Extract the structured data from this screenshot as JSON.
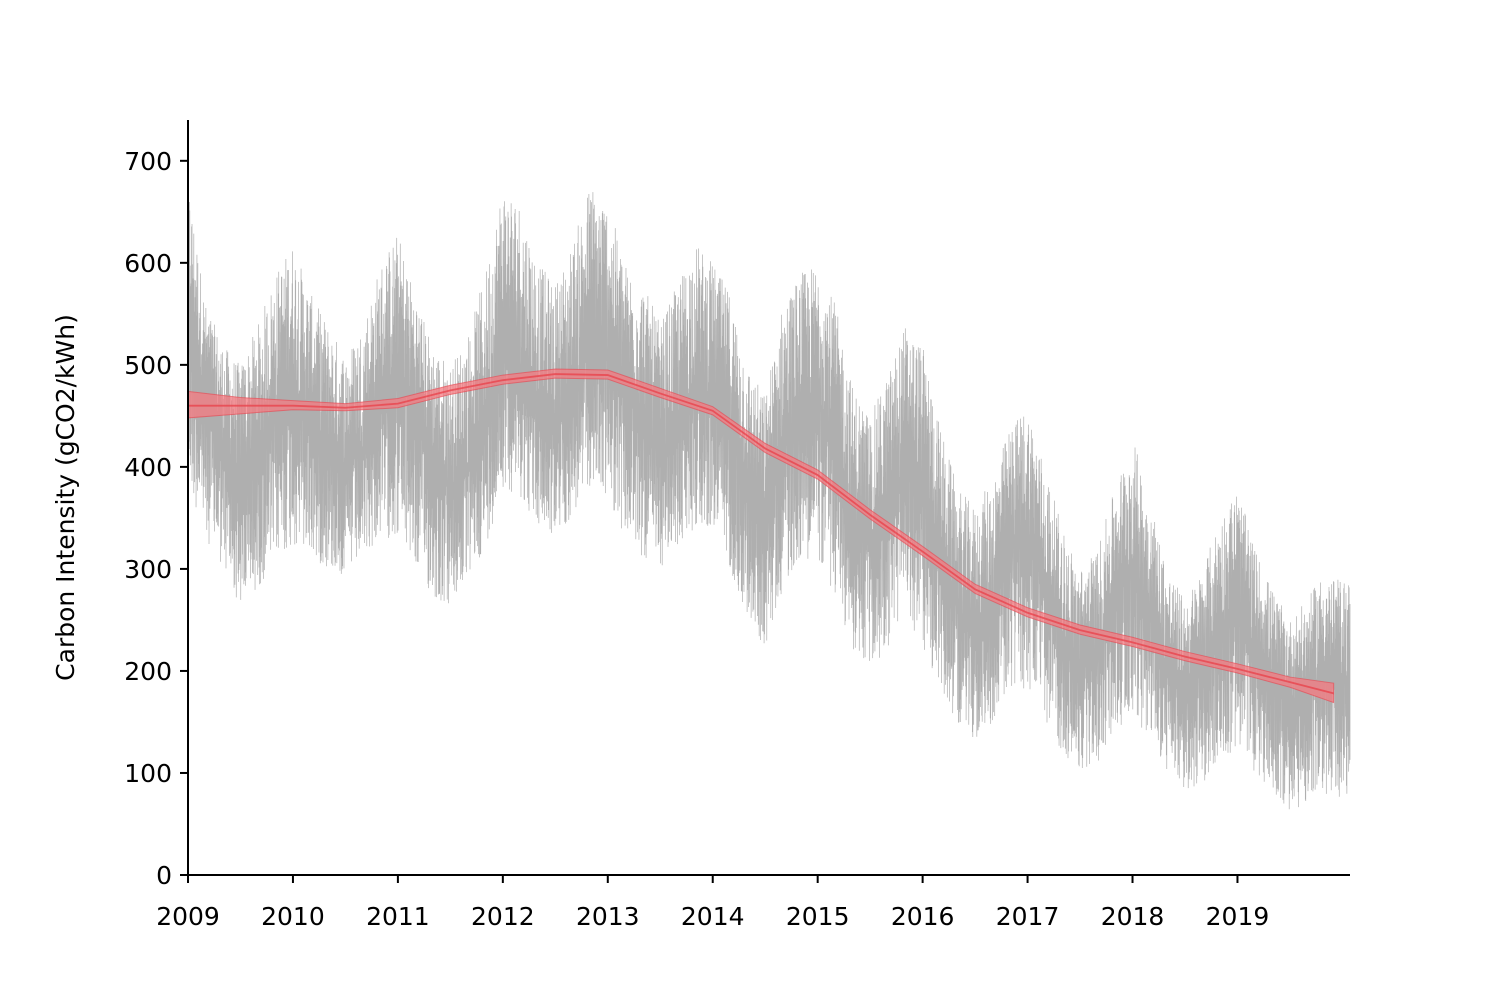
{
  "chart_data": {
    "type": "line",
    "title": "",
    "xlabel": "",
    "ylabel": "Carbon Intensity (gCO2/kWh)",
    "xlim": [
      "2009-01-01",
      "2019-12-31"
    ],
    "ylim": [
      0,
      740
    ],
    "x_ticks": [
      "2009",
      "2010",
      "2011",
      "2012",
      "2013",
      "2014",
      "2015",
      "2016",
      "2017",
      "2018",
      "2019"
    ],
    "y_ticks": [
      0,
      100,
      200,
      300,
      400,
      500,
      600,
      700
    ],
    "grid": false,
    "legend": "none",
    "colors": {
      "raw": "#a6a6a6",
      "trend": "#e8434c",
      "band": "#f47a80"
    },
    "series": [
      {
        "kind": "raw",
        "sampling": "monthly approximation of the half-hourly signal",
        "x": [
          "2009-01",
          "2009-03",
          "2009-05",
          "2009-07",
          "2009-09",
          "2009-11",
          "2010-01",
          "2010-03",
          "2010-05",
          "2010-07",
          "2010-09",
          "2010-11",
          "2011-01",
          "2011-03",
          "2011-05",
          "2011-07",
          "2011-09",
          "2011-11",
          "2012-01",
          "2012-03",
          "2012-05",
          "2012-07",
          "2012-09",
          "2012-11",
          "2013-01",
          "2013-03",
          "2013-05",
          "2013-07",
          "2013-09",
          "2013-11",
          "2014-01",
          "2014-03",
          "2014-05",
          "2014-07",
          "2014-09",
          "2014-11",
          "2015-01",
          "2015-03",
          "2015-05",
          "2015-07",
          "2015-09",
          "2015-11",
          "2016-01",
          "2016-03",
          "2016-05",
          "2016-07",
          "2016-09",
          "2016-11",
          "2017-01",
          "2017-03",
          "2017-05",
          "2017-07",
          "2017-09",
          "2017-11",
          "2018-01",
          "2018-03",
          "2018-05",
          "2018-07",
          "2018-09",
          "2018-11",
          "2019-01",
          "2019-03",
          "2019-05",
          "2019-07",
          "2019-09",
          "2019-11",
          "2019-12"
        ],
        "mean": [
          560,
          470,
          420,
          390,
          400,
          450,
          480,
          450,
          420,
          400,
          420,
          460,
          490,
          450,
          410,
          380,
          400,
          440,
          520,
          500,
          460,
          440,
          470,
          520,
          510,
          470,
          450,
          410,
          440,
          480,
          470,
          440,
          380,
          350,
          420,
          450,
          470,
          420,
          350,
          320,
          360,
          400,
          380,
          310,
          260,
          240,
          260,
          320,
          340,
          280,
          230,
          200,
          220,
          270,
          300,
          250,
          200,
          180,
          200,
          240,
          260,
          220,
          190,
          170,
          180,
          200,
          190
        ],
        "low": [
          380,
          330,
          300,
          260,
          280,
          310,
          320,
          310,
          300,
          290,
          310,
          330,
          330,
          300,
          270,
          260,
          290,
          320,
          380,
          370,
          340,
          330,
          350,
          380,
          370,
          330,
          310,
          300,
          320,
          340,
          340,
          300,
          250,
          220,
          280,
          310,
          310,
          270,
          220,
          200,
          220,
          260,
          220,
          180,
          150,
          130,
          150,
          180,
          180,
          150,
          120,
          100,
          110,
          140,
          160,
          130,
          100,
          80,
          90,
          110,
          120,
          100,
          80,
          60,
          70,
          80,
          70
        ],
        "high": [
          680,
          560,
          520,
          500,
          540,
          590,
          620,
          570,
          540,
          510,
          540,
          600,
          630,
          570,
          520,
          500,
          530,
          590,
          680,
          660,
          600,
          580,
          620,
          680,
          660,
          600,
          580,
          540,
          580,
          620,
          600,
          570,
          500,
          470,
          560,
          590,
          600,
          560,
          480,
          450,
          490,
          540,
          520,
          440,
          380,
          360,
          390,
          440,
          460,
          400,
          340,
          300,
          320,
          380,
          430,
          370,
          300,
          270,
          300,
          350,
          380,
          320,
          280,
          250,
          270,
          300,
          290
        ]
      },
      {
        "kind": "trend",
        "x": [
          "2009-01",
          "2009-07",
          "2010-01",
          "2010-07",
          "2011-01",
          "2011-07",
          "2012-01",
          "2012-07",
          "2013-01",
          "2013-07",
          "2014-01",
          "2014-07",
          "2015-01",
          "2015-07",
          "2016-01",
          "2016-07",
          "2017-01",
          "2017-07",
          "2018-01",
          "2018-07",
          "2019-01",
          "2019-07",
          "2019-12"
        ],
        "y": [
          460,
          460,
          460,
          458,
          462,
          475,
          485,
          491,
          490,
          472,
          455,
          418,
          392,
          353,
          317,
          280,
          257,
          240,
          228,
          214,
          202,
          189,
          178
        ],
        "band_low": [
          448,
          452,
          456,
          455,
          458,
          471,
          481,
          487,
          486,
          468,
          451,
          414,
          388,
          349,
          313,
          276,
          253,
          236,
          224,
          210,
          198,
          184,
          169
        ],
        "band_high": [
          474,
          468,
          465,
          462,
          467,
          480,
          490,
          496,
          495,
          477,
          459,
          423,
          397,
          358,
          322,
          285,
          262,
          245,
          233,
          219,
          207,
          194,
          188
        ]
      }
    ]
  }
}
